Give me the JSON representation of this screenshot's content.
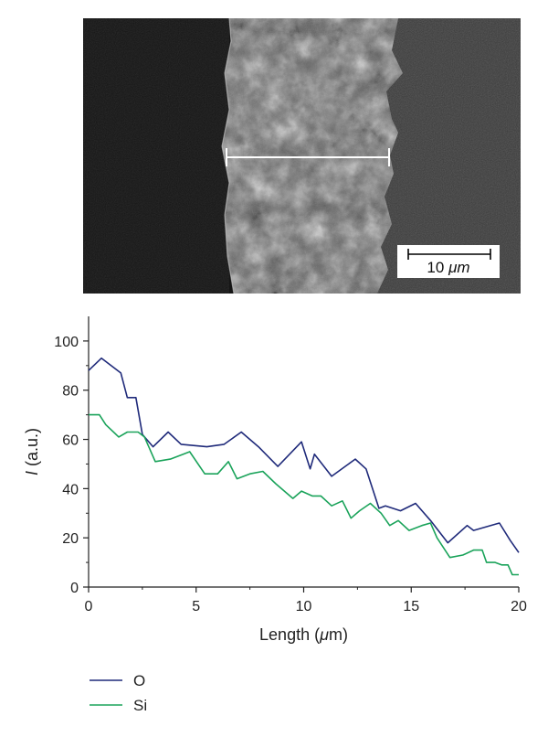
{
  "sem_image": {
    "scale_bar": {
      "value": "10",
      "unit": "μm"
    },
    "colors": {
      "background_left": "#141414",
      "sample": "#6e6e6e",
      "substrate": "#3a3a3a",
      "line": "#ffffff"
    }
  },
  "chart_data": {
    "type": "line",
    "xlabel": "Length (μm)",
    "ylabel": "I (a.u.)",
    "xlim": [
      0,
      20
    ],
    "ylim": [
      0,
      110
    ],
    "xticks": [
      0,
      5,
      10,
      15,
      20
    ],
    "yticks": [
      0,
      20,
      40,
      60,
      80,
      100
    ],
    "grid": false,
    "legend_position": "bottom-left",
    "series": [
      {
        "name": "O",
        "color": "#1f2a7a",
        "x": [
          0,
          0.6,
          1.5,
          1.8,
          2.2,
          2.5,
          3.0,
          3.7,
          4.3,
          5.5,
          6.3,
          7.1,
          7.9,
          8.8,
          9.9,
          10.3,
          10.5,
          11.3,
          12.4,
          12.9,
          13.5,
          13.8,
          14.5,
          15.2,
          15.9,
          16.7,
          17.6,
          17.9,
          18.3,
          19.1,
          19.6,
          20.0
        ],
        "y": [
          88,
          93,
          87,
          77,
          77,
          62,
          57,
          63,
          58,
          57,
          58,
          63,
          57,
          49,
          59,
          48,
          54,
          45,
          52,
          48,
          32,
          33,
          31,
          34,
          27,
          18,
          25,
          23,
          24,
          26,
          19,
          14
        ]
      },
      {
        "name": "Si",
        "color": "#1aa35a",
        "x": [
          0,
          0.5,
          0.8,
          1.4,
          1.8,
          2.3,
          2.6,
          3.1,
          3.8,
          4.4,
          4.7,
          5.4,
          6.0,
          6.5,
          6.9,
          7.5,
          8.1,
          8.7,
          9.5,
          9.9,
          10.4,
          10.8,
          11.3,
          11.8,
          12.2,
          12.6,
          13.1,
          13.6,
          14.0,
          14.4,
          14.9,
          15.5,
          15.9,
          16.2,
          16.8,
          17.4,
          17.9,
          18.3,
          18.5,
          18.9,
          19.2,
          19.5,
          19.7,
          20.0
        ],
        "y": [
          70,
          70,
          66,
          61,
          63,
          63,
          61,
          51,
          52,
          54,
          55,
          46,
          46,
          51,
          44,
          46,
          47,
          42,
          36,
          39,
          37,
          37,
          33,
          35,
          28,
          31,
          34,
          30,
          25,
          27,
          23,
          25,
          26,
          20,
          12,
          13,
          15,
          15,
          10,
          10,
          9,
          9,
          5,
          5
        ]
      }
    ]
  }
}
